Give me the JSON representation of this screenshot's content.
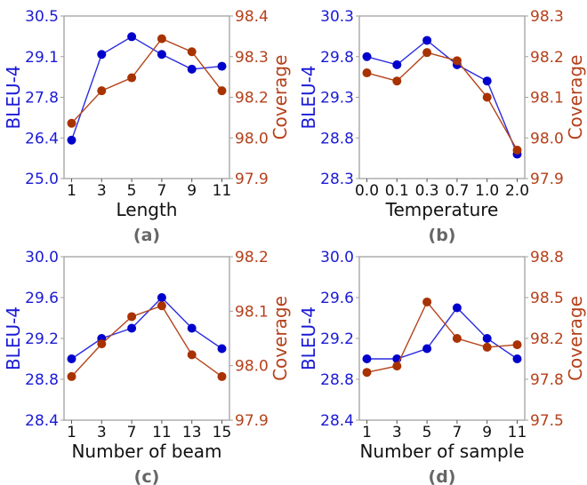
{
  "colors": {
    "bleu": "#0000cc",
    "bleu_line": "#2a2ae0",
    "bleu_text": "#1a1ad6",
    "coverage": "#a83200",
    "coverage_line": "#b5441a",
    "coverage_text": "#b5401a",
    "axes": "#a0a0a0",
    "caption": "#666666"
  },
  "chart_data": [
    {
      "type": "line",
      "caption": "(a)",
      "xlabel": "Length",
      "ylabel_left": "BLEU-4",
      "ylabel_right": "Coverage",
      "categories": [
        "1",
        "3",
        "5",
        "7",
        "9",
        "11"
      ],
      "ylim_left": [
        25.0,
        30.5
      ],
      "yticks_left": [
        "25.0",
        "26.4",
        "27.8",
        "29.1",
        "30.5"
      ],
      "ylim_right": [
        97.9,
        98.4
      ],
      "yticks_right": [
        "97.9",
        "98.0",
        "98.2",
        "98.3",
        "98.4"
      ],
      "grid": false,
      "series": [
        {
          "name": "BLEU-4",
          "axis": "left",
          "values": [
            26.3,
            29.2,
            29.8,
            29.2,
            28.7,
            28.8
          ]
        },
        {
          "name": "Coverage",
          "axis": "right",
          "values": [
            98.07,
            98.17,
            98.21,
            98.33,
            98.29,
            98.17
          ]
        }
      ]
    },
    {
      "type": "line",
      "caption": "(b)",
      "xlabel": "Temperature",
      "ylabel_left": "BLEU-4",
      "ylabel_right": "Coverage",
      "categories": [
        "0.0",
        "0.1",
        "0.3",
        "0.7",
        "1.0",
        "2.0"
      ],
      "ylim_left": [
        28.3,
        30.3
      ],
      "yticks_left": [
        "28.3",
        "28.8",
        "29.3",
        "29.8",
        "30.3"
      ],
      "ylim_right": [
        97.9,
        98.3
      ],
      "yticks_right": [
        "97.9",
        "98.0",
        "98.1",
        "98.2",
        "98.3"
      ],
      "grid": false,
      "series": [
        {
          "name": "BLEU-4",
          "axis": "left",
          "values": [
            29.8,
            29.7,
            30.0,
            29.7,
            29.5,
            28.6
          ]
        },
        {
          "name": "Coverage",
          "axis": "right",
          "values": [
            98.16,
            98.14,
            98.21,
            98.19,
            98.1,
            97.97
          ]
        }
      ]
    },
    {
      "type": "line",
      "caption": "(c)",
      "xlabel": "Number of beam",
      "ylabel_left": "BLEU-4",
      "ylabel_right": "Coverage",
      "categories": [
        "1",
        "3",
        "7",
        "11",
        "13",
        "15"
      ],
      "ylim_left": [
        28.4,
        30.0
      ],
      "yticks_left": [
        "28.4",
        "28.8",
        "29.2",
        "29.6",
        "30.0"
      ],
      "ylim_right": [
        97.9,
        98.2
      ],
      "yticks_right": [
        "97.9",
        "98.0",
        "98.1",
        "98.2"
      ],
      "grid": false,
      "series": [
        {
          "name": "BLEU-4",
          "axis": "left",
          "values": [
            29.0,
            29.2,
            29.3,
            29.6,
            29.3,
            29.1
          ]
        },
        {
          "name": "Coverage",
          "axis": "right",
          "values": [
            97.98,
            98.04,
            98.09,
            98.11,
            98.02,
            97.98
          ]
        }
      ]
    },
    {
      "type": "line",
      "caption": "(d)",
      "xlabel": "Number of sample",
      "ylabel_left": "BLEU-4",
      "ylabel_right": "Coverage",
      "categories": [
        "1",
        "3",
        "5",
        "7",
        "9",
        "11"
      ],
      "ylim_left": [
        28.4,
        30.0
      ],
      "yticks_left": [
        "28.4",
        "28.8",
        "29.2",
        "29.6",
        "30.0"
      ],
      "ylim_right": [
        97.5,
        98.8
      ],
      "yticks_right": [
        "97.5",
        "97.8",
        "98.2",
        "98.5",
        "98.8"
      ],
      "grid": false,
      "series": [
        {
          "name": "BLEU-4",
          "axis": "left",
          "values": [
            29.0,
            29.0,
            29.1,
            29.5,
            29.2,
            29.0
          ]
        },
        {
          "name": "Coverage",
          "axis": "right",
          "values": [
            97.88,
            97.93,
            98.44,
            98.15,
            98.08,
            98.1
          ]
        }
      ]
    }
  ]
}
